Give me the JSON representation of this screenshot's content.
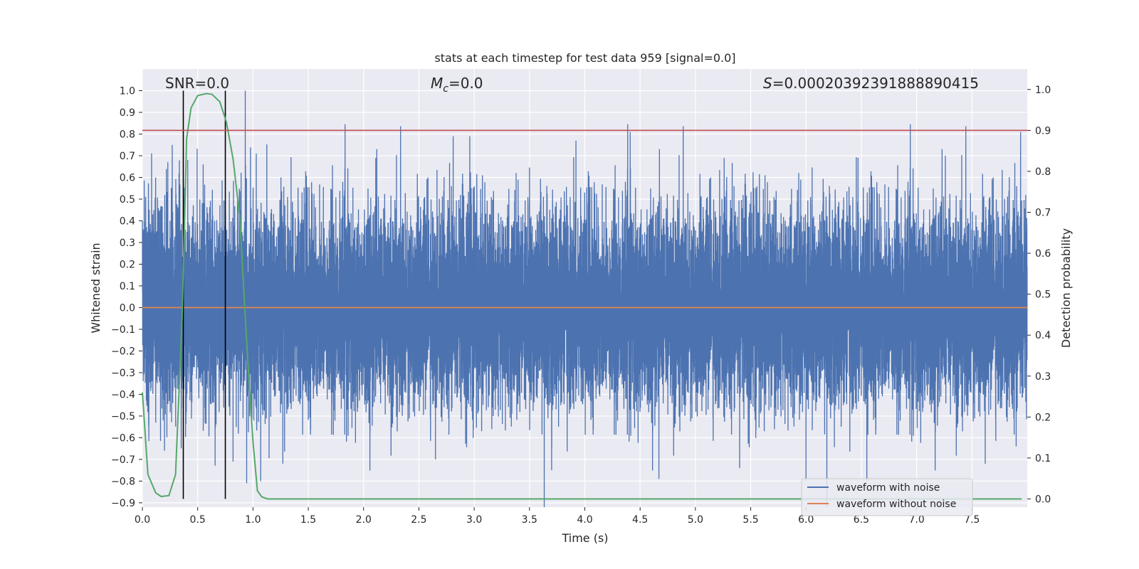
{
  "chart_data": {
    "type": "line",
    "title": "stats at each timestep for test data 959 [signal=0.0]",
    "xlabel": "Time (s)",
    "ylabel": "Whitened strain",
    "y2label": "Detection probability",
    "xlim": [
      0.0,
      8.0
    ],
    "ylim": [
      -0.92,
      1.1
    ],
    "y2lim": [
      -0.02,
      1.05
    ],
    "xticks": [
      "0.0",
      "0.5",
      "1.0",
      "1.5",
      "2.0",
      "2.5",
      "3.0",
      "3.5",
      "4.0",
      "4.5",
      "5.0",
      "5.5",
      "6.0",
      "6.5",
      "7.0",
      "7.5"
    ],
    "xtick_values": [
      0.0,
      0.5,
      1.0,
      1.5,
      2.0,
      2.5,
      3.0,
      3.5,
      4.0,
      4.5,
      5.0,
      5.5,
      6.0,
      6.5,
      7.0,
      7.5
    ],
    "yticks": [
      "1.0",
      "0.9",
      "0.8",
      "0.7",
      "0.6",
      "0.5",
      "0.4",
      "0.3",
      "0.2",
      "0.1",
      "0.0",
      "−0.1",
      "−0.2",
      "−0.3",
      "−0.4",
      "−0.5",
      "−0.6",
      "−0.7",
      "−0.8",
      "−0.9"
    ],
    "ytick_values": [
      1.0,
      0.9,
      0.8,
      0.7,
      0.6,
      0.5,
      0.4,
      0.3,
      0.2,
      0.1,
      0.0,
      -0.1,
      -0.2,
      -0.3,
      -0.4,
      -0.5,
      -0.6,
      -0.7,
      -0.8,
      -0.9
    ],
    "y2ticks": [
      "1.0",
      "0.9",
      "0.8",
      "0.7",
      "0.6",
      "0.5",
      "0.4",
      "0.3",
      "0.2",
      "0.1",
      "0.0"
    ],
    "y2tick_values": [
      1.0,
      0.9,
      0.8,
      0.7,
      0.6,
      0.5,
      0.4,
      0.3,
      0.2,
      0.1,
      0.0
    ],
    "grid": true,
    "legend_position": "lower-right",
    "annotations": {
      "snr": "SNR=0.0",
      "mc_symbol": "M",
      "mc_sub": "c",
      "mc_value": "=0.0",
      "s_symbol": "S",
      "s_value": "=0.00020392391888890415"
    },
    "series": [
      {
        "name": "waveform with noise",
        "color": "#4c72b0",
        "axis": "left",
        "sample_rate": 2048,
        "duration": 8.0,
        "typical_amplitude": 0.26,
        "peaks": [
          {
            "x": 0.03,
            "y": 0.51
          },
          {
            "x": 0.12,
            "y": 0.6
          },
          {
            "x": 0.23,
            "y": 0.67
          },
          {
            "x": 0.27,
            "y": 0.75
          },
          {
            "x": 0.41,
            "y": 0.68
          },
          {
            "x": 0.55,
            "y": 0.66
          },
          {
            "x": 0.93,
            "y": 1.0
          },
          {
            "x": 1.03,
            "y": 0.71
          },
          {
            "x": 2.11,
            "y": 0.69
          },
          {
            "x": 2.81,
            "y": 0.79
          },
          {
            "x": 2.96,
            "y": 0.79
          },
          {
            "x": 3.92,
            "y": 0.77
          },
          {
            "x": 4.41,
            "y": 0.81
          },
          {
            "x": 5.26,
            "y": 0.69
          },
          {
            "x": 6.0,
            "y": 0.75
          },
          {
            "x": 6.47,
            "y": 0.69
          },
          {
            "x": 7.26,
            "y": 0.7
          },
          {
            "x": 7.94,
            "y": 0.81
          },
          {
            "x": 0.2,
            "y": -0.66
          },
          {
            "x": 0.82,
            "y": -0.71
          },
          {
            "x": 1.07,
            "y": -0.8
          },
          {
            "x": 1.27,
            "y": -0.72
          },
          {
            "x": 2.65,
            "y": -0.7
          },
          {
            "x": 3.7,
            "y": -0.75
          },
          {
            "x": 4.67,
            "y": -0.79
          },
          {
            "x": 5.4,
            "y": -0.74
          },
          {
            "x": 6.0,
            "y": -0.8
          },
          {
            "x": 6.55,
            "y": -0.8
          },
          {
            "x": 7.62,
            "y": -0.72
          },
          {
            "x": 7.9,
            "y": -0.64
          }
        ]
      },
      {
        "name": "waveform without noise",
        "color": "#dd8452",
        "axis": "left",
        "x": [
          0.0,
          8.0
        ],
        "y": [
          0.0,
          0.0
        ]
      },
      {
        "color": "#55a868",
        "axis": "right",
        "x": [
          0.0,
          0.05,
          0.12,
          0.17,
          0.24,
          0.3,
          0.36,
          0.4,
          0.44,
          0.5,
          0.58,
          0.63,
          0.7,
          0.76,
          0.82,
          0.88,
          0.95,
          1.0,
          1.04,
          1.08,
          1.13,
          1.2,
          1.5,
          2.0,
          3.0,
          4.0,
          5.0,
          6.0,
          7.0,
          7.95
        ],
        "y": [
          0.26,
          0.06,
          0.015,
          0.006,
          0.008,
          0.06,
          0.45,
          0.88,
          0.955,
          0.985,
          0.99,
          0.988,
          0.97,
          0.92,
          0.83,
          0.69,
          0.35,
          0.14,
          0.02,
          0.005,
          0.0,
          0.0,
          0.0,
          0.0,
          0.0,
          0.0,
          0.0,
          0.0,
          0.0,
          0.0
        ]
      }
    ],
    "threshold": {
      "color": "#c44e52",
      "axis": "right",
      "value": 0.9
    },
    "vlines": [
      {
        "x": 0.37,
        "color": "#000000"
      },
      {
        "x": 0.75,
        "color": "#000000"
      }
    ]
  }
}
